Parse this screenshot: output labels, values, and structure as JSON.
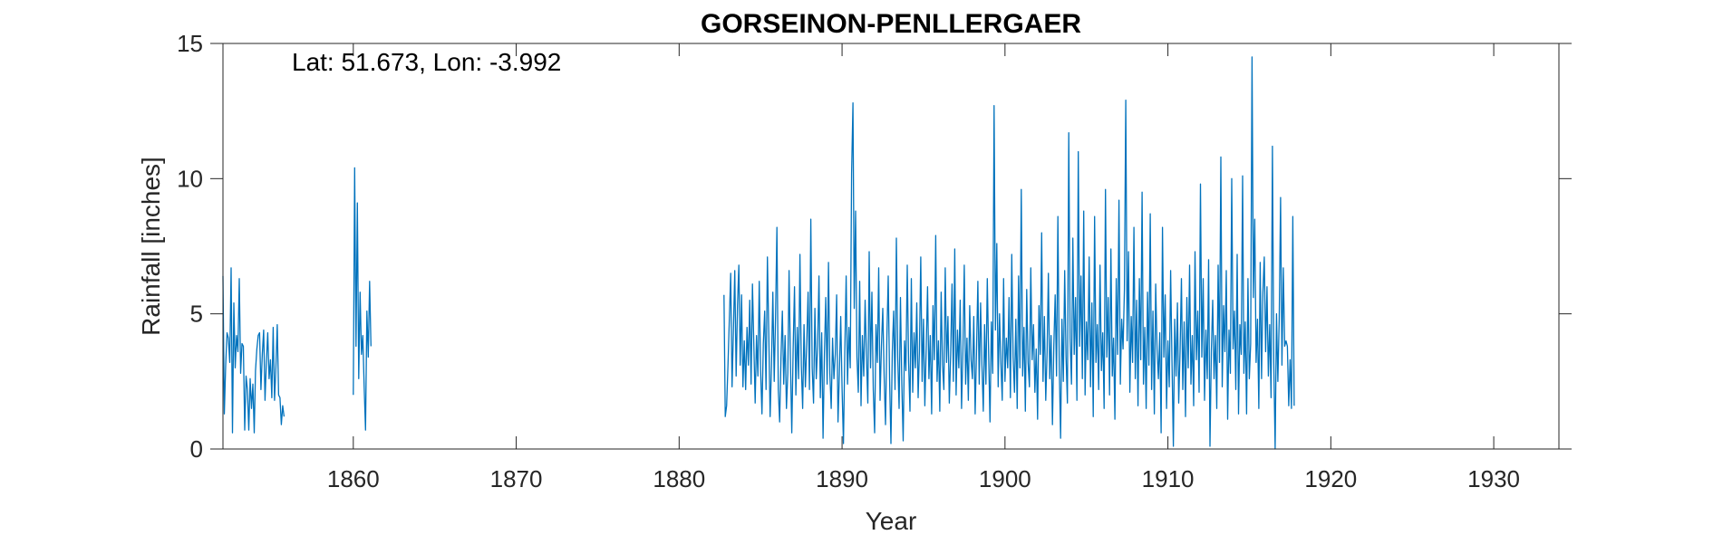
{
  "chart_data": {
    "type": "line",
    "title": "GORSEINON-PENLLERGAER",
    "xlabel": "Year",
    "ylabel": "Rainfall [inches]",
    "annotation": "Lat: 51.673, Lon: -3.992",
    "xlim": [
      1852,
      1934
    ],
    "ylim": [
      0,
      15
    ],
    "x_ticks": [
      1860,
      1870,
      1880,
      1890,
      1900,
      1910,
      1920,
      1930
    ],
    "y_ticks": [
      0,
      5,
      10,
      15
    ],
    "grid": false,
    "line_color": "#0072BD",
    "series": [
      {
        "segments": [
          {
            "start_year": 1852.0,
            "step": 0.08333,
            "values": [
              6.4,
              1.3,
              3.1,
              4.3,
              4.1,
              3.2,
              6.7,
              0.6,
              5.4,
              3.0,
              4.2,
              3.6,
              6.3,
              2.8,
              3.9,
              3.8,
              0.7,
              2.7,
              2.2,
              0.7,
              2.6,
              1.5,
              2.4,
              0.6,
              2.9,
              3.7,
              4.2,
              4.3,
              2.2,
              3.5,
              4.4,
              1.8,
              3.2,
              4.3,
              2.6,
              3.3,
              1.9,
              4.5,
              1.8,
              3.0,
              4.6,
              2.0,
              1.9,
              0.9,
              1.6,
              1.2
            ]
          },
          {
            "start_year": 1860.0,
            "step": 0.08333,
            "values": [
              2.0,
              10.4,
              3.8,
              9.1,
              2.6,
              5.8,
              3.5,
              4.2,
              2.3,
              0.7,
              5.1,
              3.4,
              6.2,
              3.8
            ]
          },
          {
            "start_year": 1882.75,
            "step": 0.08333,
            "values": [
              5.7,
              1.2,
              1.6,
              3.1,
              4.8,
              6.5,
              2.3,
              4.4,
              6.6,
              2.7,
              5.3,
              6.8,
              3.1,
              5.7,
              2.3,
              4.0,
              2.2,
              4.5,
              3.1,
              5.5,
              2.4,
              6.1,
              3.9,
              1.7,
              4.2,
              2.7,
              6.2,
              2.9,
              1.3,
              3.9,
              5.1,
              2.2,
              7.1,
              4.3,
              1.2,
              3.1,
              5.8,
              2.5,
              4.9,
              8.2,
              2.2,
              1.0,
              3.4,
              5.1,
              2.4,
              4.2,
              1.5,
              2.8,
              6.6,
              3.3,
              0.6,
              3.7,
              6.0,
              2.0,
              4.5,
              2.6,
              7.2,
              3.1,
              1.5,
              4.6,
              2.3,
              3.9,
              5.8,
              2.2,
              8.5,
              3.0,
              1.7,
              5.2,
              2.6,
              3.8,
              6.4,
              1.9,
              4.3,
              0.4,
              3.5,
              5.6,
              2.4,
              6.9,
              2.8,
              1.5,
              4.1,
              2.6,
              3.5,
              5.7,
              1.0,
              2.8,
              4.9,
              2.2,
              0.2,
              3.6,
              6.4,
              2.4,
              4.5,
              3.0,
              10.2,
              12.8,
              5.2,
              8.8,
              3.4,
              2.1,
              6.2,
              1.6,
              4.2,
              2.7,
              5.5,
              3.4,
              1.7,
              7.3,
              3.0,
              5.8,
              2.2,
              0.6,
              4.6,
              3.2,
              6.7,
              1.8,
              3.8,
              5.2,
              2.7,
              0.9,
              4.1,
              6.4,
              2.6,
              0.2,
              3.6,
              5.1,
              2.2,
              7.8,
              3.4,
              1.5,
              5.6,
              2.4,
              0.3,
              4.0,
              2.9,
              6.8,
              3.2,
              1.4,
              6.3,
              2.1,
              4.3,
              3.0,
              5.4,
              1.9,
              3.6,
              7.1,
              2.5,
              4.8,
              1.6,
              3.7,
              6.0,
              2.6,
              4.2,
              1.3,
              5.3,
              3.3,
              7.9,
              2.5,
              4.0,
              1.4,
              5.8,
              3.1,
              2.2,
              6.7,
              3.2,
              4.9,
              1.7,
              3.5,
              6.1,
              2.5,
              7.4,
              2.0,
              4.4,
              3.0,
              5.5,
              1.5,
              3.6,
              6.8,
              2.4,
              4.1,
              1.8,
              5.3,
              3.3,
              2.6,
              4.9,
              1.3,
              3.6,
              6.2,
              2.4,
              5.4,
              3.1,
              1.4,
              4.6,
              2.4,
              6.3,
              3.5,
              1.0,
              4.7,
              2.8,
              12.7,
              4.4,
              7.6,
              2.3,
              5.0,
              3.2,
              1.8,
              6.3,
              2.5,
              4.1,
              3.0,
              5.6,
              1.9,
              7.2,
              3.4,
              2.1,
              4.8,
              1.5,
              6.4,
              3.0,
              9.6,
              2.7,
              4.5,
              1.4,
              5.9,
              3.2,
              2.3,
              6.7,
              3.3,
              4.6,
              2.1,
              3.7,
              1.1,
              5.3,
              3.5,
              8.0,
              2.5,
              4.9,
              1.8,
              3.6,
              6.5,
              2.6,
              4.2,
              0.9,
              3.8,
              5.7,
              2.7,
              8.6,
              3.1,
              0.4,
              4.8,
              2.5,
              6.6,
              3.4,
              1.7,
              11.7,
              4.1,
              2.4,
              7.8,
              3.5,
              5.6,
              1.8,
              11.0,
              3.8,
              6.4,
              2.6,
              8.8,
              2.0,
              4.7,
              3.3,
              7.1,
              2.3,
              5.4,
              1.2,
              8.6,
              3.2,
              4.6,
              2.2,
              6.8,
              2.9,
              4.3,
              1.5,
              9.6,
              3.4,
              5.6,
              2.0,
              7.4,
              2.7,
              4.1,
              1.1,
              6.3,
              3.5,
              9.2,
              2.4,
              4.8,
              3.7,
              5.9,
              12.9,
              4.0,
              7.3,
              2.1,
              4.9,
              3.2,
              8.2,
              2.6,
              5.5,
              1.6,
              6.3,
              3.3,
              9.5,
              2.4,
              4.5,
              1.5,
              5.8,
              3.1,
              8.7,
              2.2,
              5.1,
              1.3,
              6.1,
              3.7,
              2.6,
              4.3,
              0.6,
              8.2,
              3.4,
              5.7,
              1.5,
              4.0,
              2.3,
              6.6,
              3.2,
              0.1,
              4.8,
              2.7,
              5.4,
              1.7,
              3.6,
              6.3,
              2.2,
              4.7,
              1.2,
              5.6,
              3.0,
              6.8,
              2.4,
              4.2,
              1.6,
              7.3,
              3.3,
              5.1,
              2.1,
              9.8,
              3.4,
              6.3,
              1.8,
              4.4,
              2.6,
              7.0,
              0.1,
              3.6,
              5.5,
              2.6,
              4.2,
              1.5,
              6.8,
              3.2,
              10.8,
              2.3,
              5.3,
              3.6,
              6.6,
              1.1,
              4.4,
              2.8,
              10.0,
              3.7,
              5.1,
              2.2,
              7.2,
              1.3,
              4.6,
              3.5,
              10.1,
              2.8,
              4.7,
              1.3,
              6.3,
              2.6,
              3.9,
              14.5,
              5.6,
              8.5,
              3.2,
              4.8,
              1.5,
              6.9,
              2.6,
              5.8,
              7.1,
              3.6,
              6.0,
              2.7,
              4.6,
              1.9,
              11.2,
              3.2,
              0.0,
              5.0,
              2.5,
              4.8,
              9.3,
              3.1,
              6.7,
              3.8,
              4.0,
              3.8,
              1.6,
              3.3,
              1.5,
              8.6,
              1.6
            ]
          }
        ]
      }
    ]
  }
}
